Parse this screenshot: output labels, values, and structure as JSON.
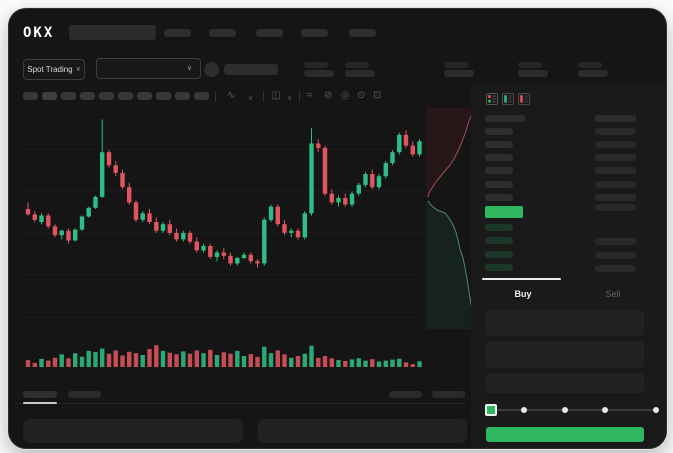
{
  "brand": {
    "logo": "OKX"
  },
  "header": {
    "market_mode": {
      "label": "Spot Trading",
      "chevron": "∨"
    },
    "pair_selector_chevron": "∨"
  },
  "skeleton": {
    "nav_items": 5,
    "timeframe_buttons": 10,
    "ticker_stat_pairs": 5
  },
  "toolbar": {
    "icons": [
      {
        "name": "line-style-icon",
        "glyph": "∿"
      },
      {
        "name": "chevron-down-icon",
        "glyph": "∨"
      },
      {
        "name": "candle-style-icon",
        "glyph": "◫"
      },
      {
        "name": "chevron-down-icon",
        "glyph": "∨"
      },
      {
        "name": "indicators-icon",
        "glyph": "≈"
      },
      {
        "name": "drawing-tools-icon",
        "glyph": "⊘"
      },
      {
        "name": "screenshot-icon",
        "glyph": "◎"
      },
      {
        "name": "chart-settings-icon",
        "glyph": "⊙"
      },
      {
        "name": "fullscreen-icon",
        "glyph": "⊡"
      }
    ]
  },
  "orderbook": {
    "ask_rows": 6,
    "bid_rows": 4,
    "highlight_color": "#2eb75f"
  },
  "trade_panel": {
    "buy_tab": "Buy",
    "sell_tab": "Sell",
    "slider_steps": 5,
    "buy_button_color": "#2eb75f"
  },
  "colors": {
    "up": "#2ebd85",
    "down": "#e0555f",
    "accent": "#2eb75f",
    "window_bg": "#151515",
    "panel_bg": "#1a1a1a"
  },
  "chart_data": [
    {
      "type": "candlestick",
      "note": "no axis labels visible; prices in relative units",
      "ylim": [
        0,
        100
      ],
      "candles": [
        [
          56,
          59,
          53,
          53.5
        ],
        [
          53.5,
          55,
          50,
          51
        ],
        [
          50,
          54,
          49,
          53
        ],
        [
          53,
          54,
          47,
          48
        ],
        [
          48,
          49,
          43,
          44
        ],
        [
          44,
          46.5,
          42,
          46
        ],
        [
          46,
          47,
          40,
          41.5
        ],
        [
          41.5,
          47,
          41,
          46.5
        ],
        [
          46.5,
          53,
          46,
          52.5
        ],
        [
          52.5,
          57,
          52,
          56.5
        ],
        [
          56.5,
          62,
          56,
          61.5
        ],
        [
          61.5,
          97,
          61,
          82
        ],
        [
          82,
          83,
          75,
          76
        ],
        [
          76,
          78,
          71,
          72.5
        ],
        [
          72.5,
          74,
          65,
          66
        ],
        [
          66,
          68,
          58,
          59
        ],
        [
          59,
          60,
          50,
          51
        ],
        [
          51,
          55,
          50,
          54
        ],
        [
          54,
          56,
          49,
          50
        ],
        [
          50,
          52,
          45,
          46
        ],
        [
          46,
          50,
          45,
          49
        ],
        [
          49,
          51,
          44,
          45
        ],
        [
          45,
          47,
          41,
          42
        ],
        [
          42,
          46,
          41,
          45
        ],
        [
          45,
          46,
          40,
          41
        ],
        [
          41,
          43,
          36,
          37
        ],
        [
          37,
          40,
          36,
          39
        ],
        [
          39,
          40,
          33,
          34
        ],
        [
          34,
          37,
          32,
          36
        ],
        [
          36,
          38,
          33,
          34.5
        ],
        [
          34.5,
          36,
          30,
          31
        ],
        [
          31,
          34,
          30,
          33.5
        ],
        [
          33.5,
          36,
          33,
          35
        ],
        [
          35,
          36,
          31,
          32
        ],
        [
          32,
          33,
          29,
          31
        ],
        [
          31,
          52,
          30,
          51
        ],
        [
          51,
          58,
          50,
          57
        ],
        [
          57,
          58,
          48,
          49
        ],
        [
          49,
          51,
          44,
          45
        ],
        [
          45,
          47,
          43,
          46
        ],
        [
          46,
          47,
          42,
          43
        ],
        [
          43,
          55,
          42,
          54
        ],
        [
          54,
          93,
          53,
          86
        ],
        [
          86,
          88,
          82,
          84
        ],
        [
          84,
          85,
          62,
          63
        ],
        [
          63,
          65,
          58,
          59
        ],
        [
          59,
          62,
          57,
          61
        ],
        [
          61,
          63,
          57,
          58
        ],
        [
          58,
          64,
          57,
          63
        ],
        [
          63,
          68,
          62,
          67
        ],
        [
          67,
          73,
          66,
          72
        ],
        [
          72,
          74,
          65,
          66
        ],
        [
          66,
          72,
          65,
          71
        ],
        [
          71,
          78,
          70,
          77
        ],
        [
          77,
          83,
          76,
          82
        ],
        [
          82,
          91,
          81,
          90
        ],
        [
          90,
          92,
          84,
          85
        ],
        [
          85,
          87,
          80,
          81
        ],
        [
          81,
          88,
          80,
          87
        ]
      ]
    },
    {
      "type": "bar",
      "name": "volume",
      "values": [
        30,
        18,
        35,
        28,
        40,
        55,
        38,
        60,
        45,
        70,
        65,
        80,
        58,
        72,
        50,
        66,
        60,
        52,
        78,
        95,
        70,
        62,
        55,
        68,
        58,
        72,
        60,
        75,
        52,
        64,
        58,
        70,
        48,
        56,
        44,
        88,
        60,
        72,
        55,
        40,
        48,
        58,
        92,
        40,
        48,
        38,
        30,
        26,
        33,
        38,
        28,
        34,
        24,
        28,
        32,
        36,
        20,
        12,
        25
      ]
    },
    {
      "type": "depth",
      "orientation": "vertical",
      "asks_curve": [
        [
          475,
          107
        ],
        [
          471,
          113
        ],
        [
          468,
          120
        ],
        [
          465,
          130
        ],
        [
          461,
          141
        ],
        [
          457,
          150
        ],
        [
          453,
          158
        ],
        [
          449,
          164
        ],
        [
          444,
          170
        ],
        [
          439,
          176
        ],
        [
          435,
          181
        ],
        [
          431,
          187
        ],
        [
          428,
          192
        ],
        [
          427,
          196
        ]
      ],
      "bids_curve": [
        [
          427,
          200
        ],
        [
          431,
          205
        ],
        [
          436,
          209
        ],
        [
          444,
          212
        ],
        [
          448,
          217
        ],
        [
          452,
          224
        ],
        [
          455,
          231
        ],
        [
          457,
          239
        ],
        [
          459,
          248
        ],
        [
          462,
          257
        ],
        [
          464,
          267
        ],
        [
          466,
          278
        ],
        [
          468,
          291
        ],
        [
          470,
          303
        ],
        [
          472,
          314
        ],
        [
          474,
          322
        ],
        [
          475,
          328
        ]
      ]
    }
  ]
}
